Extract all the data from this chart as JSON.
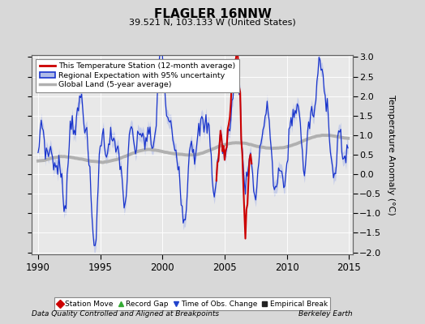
{
  "title": "FLAGLER 16NNW",
  "subtitle": "39.521 N, 103.133 W (United States)",
  "ylabel": "Temperature Anomaly (°C)",
  "footer_left": "Data Quality Controlled and Aligned at Breakpoints",
  "footer_right": "Berkeley Earth",
  "xlim": [
    1989.5,
    2015.3
  ],
  "ylim": [
    -2.05,
    3.05
  ],
  "yticks": [
    -2,
    -1.5,
    -1,
    -0.5,
    0,
    0.5,
    1,
    1.5,
    2,
    2.5,
    3
  ],
  "xticks": [
    1990,
    1995,
    2000,
    2005,
    2010,
    2015
  ],
  "bg_color": "#d8d8d8",
  "plot_bg_color": "#e8e8e8",
  "regional_fill_color": "#b0bce8",
  "regional_line_color": "#1a35cc",
  "station_color": "#cc0000",
  "global_color": "#b0b0b0",
  "legend_marker_colors": {
    "station_move": "#cc0000",
    "record_gap": "#33aa33",
    "time_obs": "#2244cc",
    "empirical": "#222222"
  }
}
